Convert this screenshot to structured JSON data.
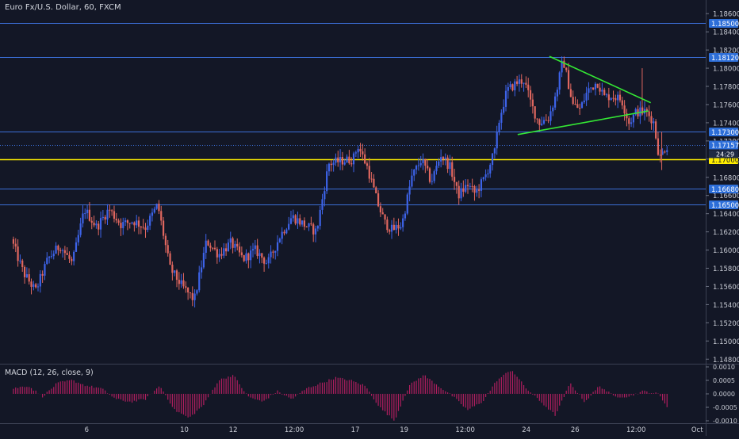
{
  "header": {
    "title": "Euro Fx/U.S. Dollar, 60, FXCM"
  },
  "macd": {
    "title": "MACD (12, 26, close, 9)"
  },
  "colors": {
    "background": "#131726",
    "up": "#3d63e8",
    "down": "#e0675f",
    "hline": "#3b6ed6",
    "yellow_line": "#ffee00",
    "trendline": "#34e834",
    "macd_hist": "#b01e5f",
    "axis_text": "#c8cbd4",
    "label_bg": "#2d6ed8"
  },
  "chart_data": [
    {
      "type": "candlestick",
      "title": "Euro Fx/U.S. Dollar, 60, FXCM",
      "ylim": [
        1.1475,
        1.1875
      ],
      "y_ticks": [
        "1.18600",
        "1.18400",
        "1.18200",
        "1.18000",
        "1.17800",
        "1.17600",
        "1.17400",
        "1.17200",
        "1.17000",
        "1.16800",
        "1.16600",
        "1.16400",
        "1.16200",
        "1.16000",
        "1.15800",
        "1.15600",
        "1.15400",
        "1.15200",
        "1.15000",
        "1.14800"
      ],
      "x_ticks": [
        {
          "label": "6",
          "day": 6.0
        },
        {
          "label": "10",
          "day": 10.0
        },
        {
          "label": "12",
          "day": 12.0
        },
        {
          "label": "12:00",
          "day": 14.5
        },
        {
          "label": "17",
          "day": 17.0
        },
        {
          "label": "19",
          "day": 19.0
        },
        {
          "label": "12:00",
          "day": 21.5
        },
        {
          "label": "24",
          "day": 24.0
        },
        {
          "label": "26",
          "day": 26.0
        },
        {
          "label": "12:00",
          "day": 28.5
        },
        {
          "label": "Oct",
          "day": 31.0
        }
      ],
      "horizontal_levels": [
        {
          "value": 1.185,
          "label": "1.18500",
          "style": "blue"
        },
        {
          "value": 1.1812,
          "label": "1.18120",
          "style": "blue"
        },
        {
          "value": 1.173,
          "label": "1.17300",
          "style": "blue"
        },
        {
          "value": 1.1668,
          "label": "1.16680",
          "style": "blue"
        },
        {
          "value": 1.165,
          "label": "1.16500",
          "style": "blue"
        },
        {
          "value": 1.17,
          "label": "1.17000",
          "style": "yellow"
        }
      ],
      "last_price": {
        "value": 1.17157,
        "label": "1.17157",
        "countdown": "24:29"
      },
      "trendlines": [
        {
          "x1": 24.95,
          "y1": 1.1813,
          "x2": 29.1,
          "y2": 1.1762
        },
        {
          "x1": 23.65,
          "y1": 1.1727,
          "x2": 29.0,
          "y2": 1.1753
        }
      ],
      "anchors": [
        [
          3.0,
          1.1612
        ],
        [
          3.5,
          1.1575
        ],
        [
          4.0,
          1.1555
        ],
        [
          4.5,
          1.159
        ],
        [
          5.0,
          1.1605
        ],
        [
          5.5,
          1.1585
        ],
        [
          6.0,
          1.1645
        ],
        [
          6.5,
          1.1625
        ],
        [
          7.0,
          1.1645
        ],
        [
          7.5,
          1.1628
        ],
        [
          8.0,
          1.1632
        ],
        [
          8.5,
          1.1625
        ],
        [
          9.0,
          1.165
        ],
        [
          9.5,
          1.158
        ],
        [
          10.0,
          1.156
        ],
        [
          10.5,
          1.1545
        ],
        [
          11.0,
          1.161
        ],
        [
          11.5,
          1.1595
        ],
        [
          12.0,
          1.1608
        ],
        [
          12.5,
          1.159
        ],
        [
          13.0,
          1.16
        ],
        [
          13.5,
          1.1585
        ],
        [
          14.0,
          1.1615
        ],
        [
          14.5,
          1.1637
        ],
        [
          15.0,
          1.1628
        ],
        [
          15.5,
          1.162
        ],
        [
          16.0,
          1.1695
        ],
        [
          16.5,
          1.1698
        ],
        [
          17.0,
          1.17
        ],
        [
          17.2,
          1.1715
        ],
        [
          17.6,
          1.169
        ],
        [
          18.0,
          1.1652
        ],
        [
          18.3,
          1.163
        ],
        [
          18.6,
          1.1622
        ],
        [
          19.0,
          1.1628
        ],
        [
          19.4,
          1.168
        ],
        [
          19.8,
          1.17
        ],
        [
          20.2,
          1.1675
        ],
        [
          20.6,
          1.1705
        ],
        [
          21.0,
          1.169
        ],
        [
          21.3,
          1.166
        ],
        [
          21.7,
          1.1672
        ],
        [
          22.0,
          1.1662
        ],
        [
          22.4,
          1.168
        ],
        [
          22.8,
          1.1708
        ],
        [
          23.0,
          1.1745
        ],
        [
          23.3,
          1.1775
        ],
        [
          23.7,
          1.1784
        ],
        [
          24.0,
          1.1787
        ],
        [
          24.3,
          1.176
        ],
        [
          24.6,
          1.174
        ],
        [
          25.0,
          1.1745
        ],
        [
          25.3,
          1.177
        ],
        [
          25.6,
          1.181
        ],
        [
          26.0,
          1.176
        ],
        [
          26.3,
          1.1755
        ],
        [
          26.6,
          1.1775
        ],
        [
          27.0,
          1.1785
        ],
        [
          27.3,
          1.1768
        ],
        [
          27.6,
          1.177
        ],
        [
          28.0,
          1.1765
        ],
        [
          28.3,
          1.174
        ],
        [
          28.6,
          1.1752
        ],
        [
          29.0,
          1.1752
        ],
        [
          29.3,
          1.1742
        ],
        [
          29.55,
          1.17
        ],
        [
          29.8,
          1.1714
        ]
      ],
      "x_domain": [
        2.45,
        31.35
      ],
      "series": [
        {
          "name": "EUR/USD",
          "candles": "hourly OHLC, generated from anchors"
        }
      ]
    },
    {
      "type": "bar",
      "title": "MACD (12, 26, close, 9)",
      "ylim": [
        -0.0012,
        0.0012
      ],
      "y_ticks": [
        "0.0010",
        "0.0005",
        "0.0000",
        "-0.0005",
        "-0.0010"
      ],
      "histogram_anchors": [
        [
          3.0,
          0.0002
        ],
        [
          3.6,
          0.0003
        ],
        [
          4.2,
          -0.0001
        ],
        [
          4.8,
          0.0004
        ],
        [
          5.4,
          0.0005
        ],
        [
          6.0,
          0.0003
        ],
        [
          6.6,
          0.0002
        ],
        [
          7.2,
          -0.0002
        ],
        [
          7.8,
          -0.0003
        ],
        [
          8.4,
          -0.0002
        ],
        [
          9.0,
          0.0003
        ],
        [
          9.6,
          -0.0006
        ],
        [
          10.2,
          -0.0009
        ],
        [
          10.8,
          -0.0004
        ],
        [
          11.4,
          0.0005
        ],
        [
          12.0,
          0.0007
        ],
        [
          12.6,
          -0.0001
        ],
        [
          13.2,
          -0.0003
        ],
        [
          13.8,
          0.0001
        ],
        [
          14.4,
          -0.0002
        ],
        [
          15.0,
          0.0002
        ],
        [
          15.6,
          0.0004
        ],
        [
          16.2,
          0.0006
        ],
        [
          16.8,
          0.0005
        ],
        [
          17.4,
          0.0003
        ],
        [
          18.0,
          -0.0005
        ],
        [
          18.6,
          -0.001
        ],
        [
          19.2,
          0.0003
        ],
        [
          19.8,
          0.0007
        ],
        [
          20.4,
          0.0003
        ],
        [
          21.0,
          -0.0001
        ],
        [
          21.6,
          -0.0006
        ],
        [
          22.2,
          -0.0003
        ],
        [
          22.8,
          0.0005
        ],
        [
          23.4,
          0.0009
        ],
        [
          24.0,
          0.0002
        ],
        [
          24.6,
          -0.0003
        ],
        [
          25.2,
          -0.0008
        ],
        [
          25.8,
          0.0004
        ],
        [
          26.4,
          -0.0003
        ],
        [
          27.0,
          0.0003
        ],
        [
          27.6,
          -0.0001
        ],
        [
          28.2,
          -0.0001
        ],
        [
          28.8,
          0.0001
        ],
        [
          29.4,
          0.0
        ],
        [
          29.8,
          -0.0005
        ]
      ]
    }
  ]
}
